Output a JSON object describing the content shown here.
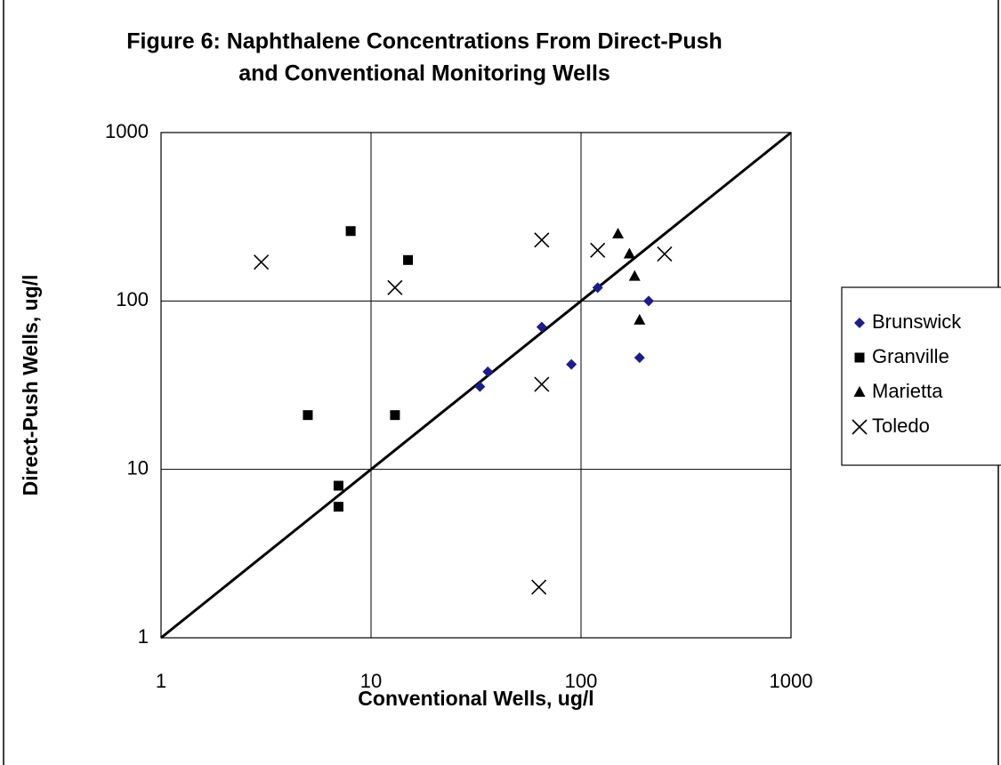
{
  "chart_data": {
    "type": "scatter",
    "title": [
      "Figure 6:  Naphthalene Concentrations From Direct-Push",
      "and Conventional Monitoring Wells"
    ],
    "x_label": "Conventional Wells, ug/l",
    "y_label": "Direct-Push Wells, ug/l",
    "xscale": "log",
    "yscale": "log",
    "xlim": [
      1,
      1000
    ],
    "ylim": [
      1,
      1000
    ],
    "xticks": [
      1,
      10,
      100,
      1000
    ],
    "yticks": [
      1,
      10,
      100,
      1000
    ],
    "grid": true,
    "legend": "right",
    "series": [
      {
        "name": "Brunswick",
        "color": "#1c1c8c",
        "marker": "diamond",
        "x": [
          33,
          36,
          65,
          90,
          120,
          190,
          210
        ],
        "values": [
          31,
          38,
          70,
          42,
          120,
          46,
          100
        ]
      },
      {
        "name": "Granville",
        "color": "#000000",
        "marker": "square",
        "x": [
          5,
          7,
          7,
          8,
          13,
          15
        ],
        "values": [
          21,
          8,
          6,
          260,
          21,
          175
        ]
      },
      {
        "name": "Marietta",
        "color": "#000000",
        "marker": "triangle",
        "x": [
          150,
          170,
          180,
          190
        ],
        "values": [
          250,
          190,
          140,
          77
        ]
      },
      {
        "name": "Toledo",
        "color": "#000000",
        "marker": "x",
        "x": [
          3,
          13,
          63,
          65,
          65,
          120,
          250
        ],
        "values": [
          170,
          120,
          2,
          230,
          32,
          200,
          190
        ]
      }
    ]
  }
}
